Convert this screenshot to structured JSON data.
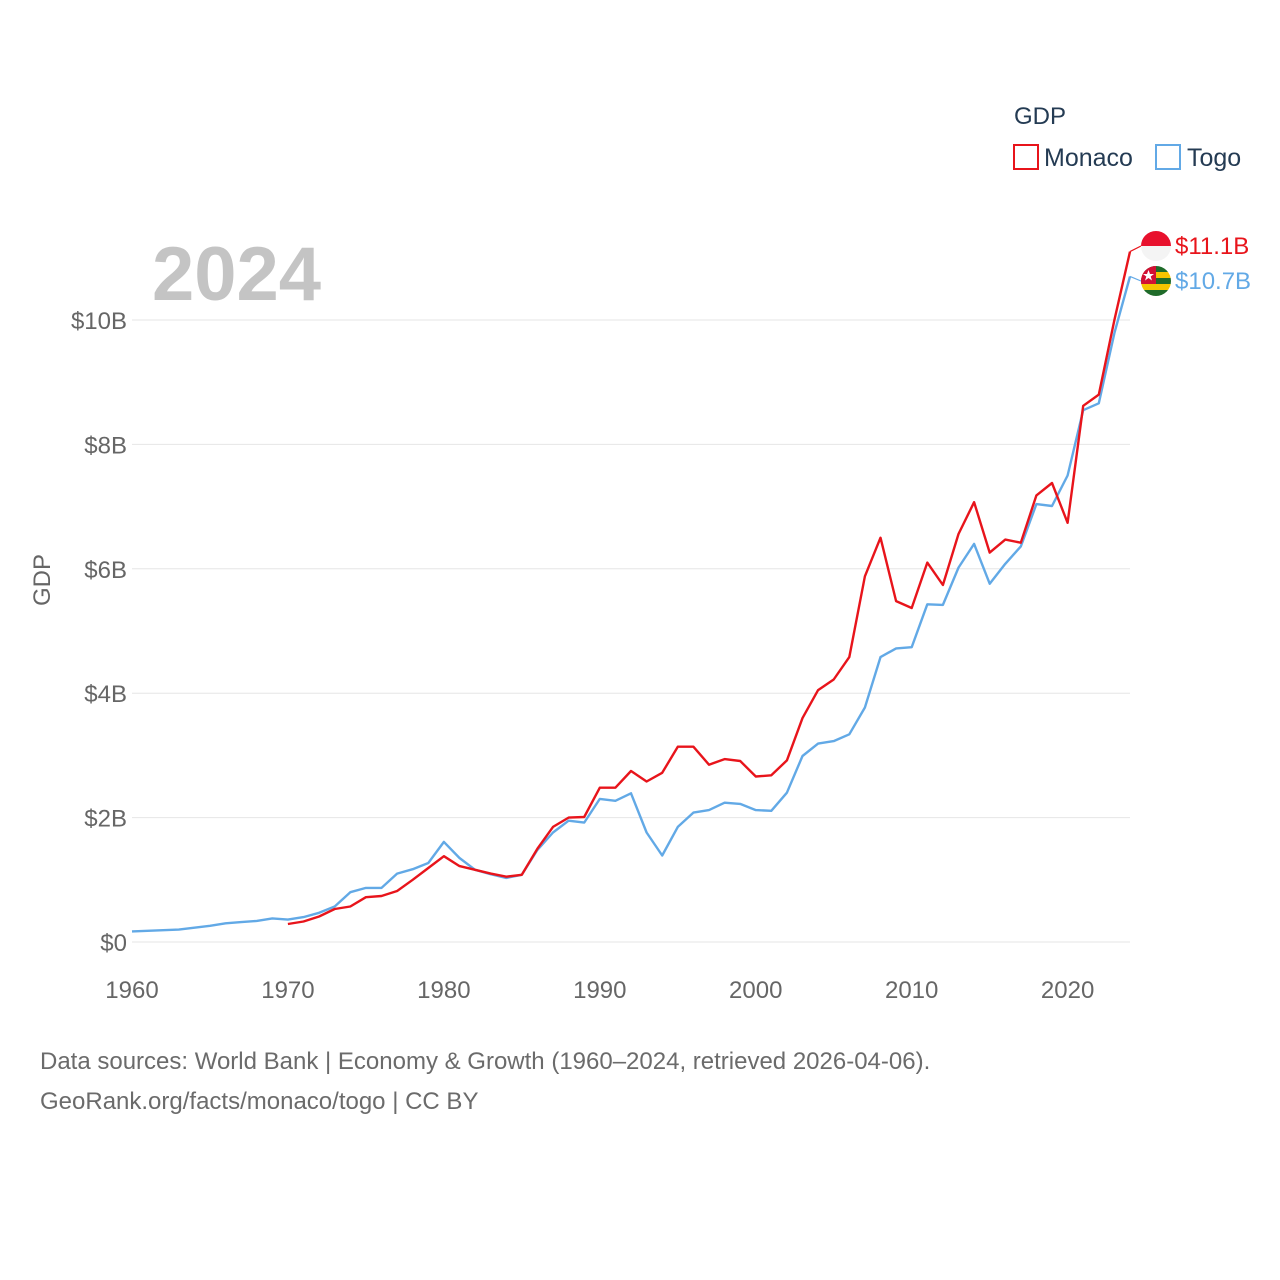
{
  "chart_data": {
    "type": "line",
    "year_label": "2024",
    "ylabel": "GDP",
    "legend_title": "GDP",
    "xlim": [
      1960,
      2024
    ],
    "ylim": [
      0,
      11.5
    ],
    "x_ticks": [
      1960,
      1970,
      1980,
      1990,
      2000,
      2010,
      2020
    ],
    "x_tick_labels": [
      "1960",
      "1970",
      "1980",
      "1990",
      "2000",
      "2010",
      "2020"
    ],
    "y_ticks": [
      0,
      2,
      4,
      6,
      8,
      10
    ],
    "y_tick_labels": [
      "$0",
      "$2B",
      "$4B",
      "$6B",
      "$8B",
      "$10B"
    ],
    "series": [
      {
        "name": "Monaco",
        "color": "#e8141b",
        "end_label": "$11.1B",
        "flag": "monaco-flag-icon",
        "x": [
          1970,
          1971,
          1972,
          1973,
          1974,
          1975,
          1976,
          1977,
          1978,
          1979,
          1980,
          1981,
          1982,
          1983,
          1984,
          1985,
          1986,
          1987,
          1988,
          1989,
          1990,
          1991,
          1992,
          1993,
          1994,
          1995,
          1996,
          1997,
          1998,
          1999,
          2000,
          2001,
          2002,
          2003,
          2004,
          2005,
          2006,
          2007,
          2008,
          2009,
          2010,
          2011,
          2012,
          2013,
          2014,
          2015,
          2016,
          2017,
          2018,
          2019,
          2020,
          2021,
          2022,
          2023,
          2024
        ],
        "values": [
          0.29,
          0.33,
          0.41,
          0.53,
          0.57,
          0.72,
          0.74,
          0.82,
          1.0,
          1.19,
          1.38,
          1.22,
          1.16,
          1.1,
          1.05,
          1.08,
          1.5,
          1.85,
          2.0,
          2.01,
          2.48,
          2.48,
          2.75,
          2.58,
          2.72,
          3.14,
          3.14,
          2.85,
          2.94,
          2.91,
          2.66,
          2.68,
          2.92,
          3.6,
          4.05,
          4.22,
          4.58,
          5.88,
          6.5,
          5.48,
          5.37,
          6.1,
          5.74,
          6.56,
          7.07,
          6.26,
          6.47,
          6.42,
          7.18,
          7.38,
          6.74,
          8.62,
          8.8,
          10.0,
          11.1
        ]
      },
      {
        "name": "Togo",
        "color": "#62a9e6",
        "end_label": "$10.7B",
        "flag": "togo-flag-icon",
        "x": [
          1960,
          1961,
          1962,
          1963,
          1964,
          1965,
          1966,
          1967,
          1968,
          1969,
          1970,
          1971,
          1972,
          1973,
          1974,
          1975,
          1976,
          1977,
          1978,
          1979,
          1980,
          1981,
          1982,
          1983,
          1984,
          1985,
          1986,
          1987,
          1988,
          1989,
          1990,
          1991,
          1992,
          1993,
          1994,
          1995,
          1996,
          1997,
          1998,
          1999,
          2000,
          2001,
          2002,
          2003,
          2004,
          2005,
          2006,
          2007,
          2008,
          2009,
          2010,
          2011,
          2012,
          2013,
          2014,
          2015,
          2016,
          2017,
          2018,
          2019,
          2020,
          2021,
          2022,
          2023,
          2024
        ],
        "values": [
          0.17,
          0.18,
          0.19,
          0.2,
          0.23,
          0.26,
          0.3,
          0.32,
          0.34,
          0.38,
          0.36,
          0.4,
          0.47,
          0.57,
          0.8,
          0.87,
          0.87,
          1.1,
          1.17,
          1.27,
          1.61,
          1.35,
          1.16,
          1.09,
          1.03,
          1.08,
          1.48,
          1.76,
          1.95,
          1.92,
          2.3,
          2.27,
          2.39,
          1.76,
          1.39,
          1.85,
          2.08,
          2.12,
          2.24,
          2.22,
          2.12,
          2.11,
          2.4,
          2.99,
          3.19,
          3.23,
          3.34,
          3.77,
          4.58,
          4.72,
          4.74,
          5.43,
          5.42,
          6.02,
          6.4,
          5.76,
          6.08,
          6.36,
          7.04,
          7.01,
          7.5,
          8.55,
          8.66,
          9.79,
          10.7
        ]
      }
    ]
  },
  "footer": {
    "line1": "Data sources: World Bank | Economy & Growth (1960–2024, retrieved 2026-04-06).",
    "line2": "GeoRank.org/facts/monaco/togo | CC BY"
  }
}
